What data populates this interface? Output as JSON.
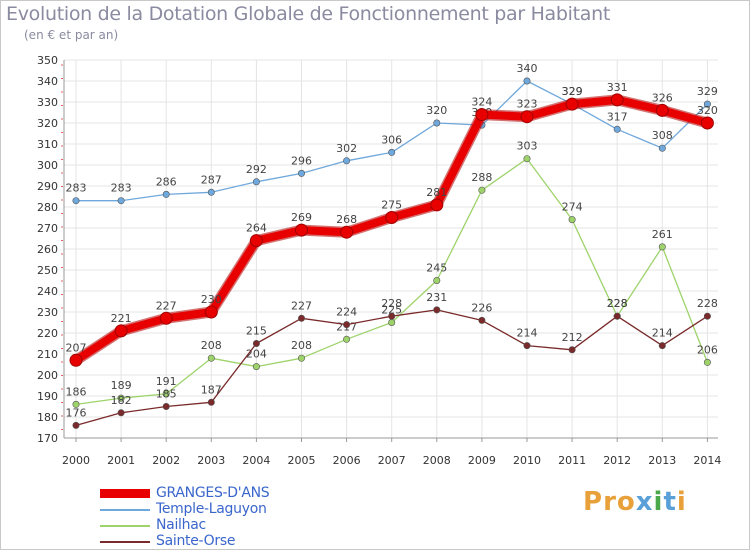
{
  "header": {
    "title": "Evolution de la Dotation Globale de Fonctionnement par Habitant",
    "subtitle": "(en € et par an)"
  },
  "logo": {
    "text": "Proxiti",
    "colors": [
      "#e8a13a",
      "#5aa0d8",
      "#4aa84a",
      "#d44a8a"
    ]
  },
  "chart_data": {
    "type": "line",
    "x": [
      "2000",
      "2001",
      "2002",
      "2003",
      "2004",
      "2005",
      "2006",
      "2007",
      "2008",
      "2009",
      "2010",
      "2011",
      "2012",
      "2013",
      "2014"
    ],
    "ylim": [
      170,
      350
    ],
    "yticks": [
      170,
      180,
      190,
      200,
      210,
      220,
      230,
      240,
      250,
      260,
      270,
      280,
      290,
      300,
      310,
      320,
      330,
      340,
      350
    ],
    "grid": true,
    "legend_position": "bottom-left",
    "series": [
      {
        "name": "GRANGES-D'ANS",
        "color": "#e80000",
        "values": [
          207,
          221,
          227,
          230,
          264,
          269,
          268,
          275,
          281,
          324,
          323,
          329,
          331,
          326,
          320
        ]
      },
      {
        "name": "Temple-Laguyon",
        "color": "#6fa8dc",
        "values": [
          283,
          283,
          286,
          287,
          292,
          296,
          302,
          306,
          320,
          319,
          340,
          329,
          317,
          308,
          329
        ]
      },
      {
        "name": "Nailhac",
        "color": "#9ed36b",
        "values": [
          186,
          189,
          191,
          208,
          204,
          208,
          217,
          225,
          245,
          288,
          303,
          274,
          228,
          261,
          206
        ]
      },
      {
        "name": "Sainte-Orse",
        "color": "#7a2a2a",
        "values": [
          176,
          182,
          185,
          187,
          215,
          227,
          224,
          228,
          231,
          226,
          214,
          212,
          228,
          214,
          228
        ]
      }
    ]
  }
}
